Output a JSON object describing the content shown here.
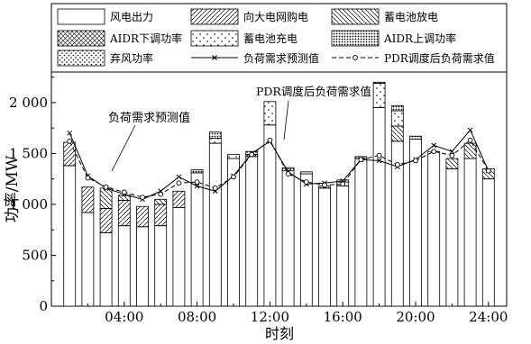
{
  "chart_data": {
    "type": "bar",
    "xlabel": "时刻",
    "ylabel": "功率/MW",
    "ylim": [
      0,
      2300
    ],
    "yticks": [
      0,
      500,
      1000,
      1500,
      2000
    ],
    "ytick_labels": [
      "0",
      "500",
      "1 000",
      "1 500",
      "2 000"
    ],
    "xticks": [
      4,
      8,
      12,
      16,
      20,
      24
    ],
    "xtick_labels": [
      "04:00",
      "08:00",
      "12:00",
      "16:00",
      "20:00",
      "24:00"
    ],
    "hours": [
      1,
      2,
      3,
      4,
      5,
      6,
      7,
      8,
      9,
      10,
      11,
      12,
      13,
      14,
      15,
      16,
      17,
      18,
      19,
      20,
      21,
      22,
      23,
      24
    ],
    "stack_series": [
      {
        "name": "风电出力",
        "pattern": "blank",
        "values": [
          1380,
          920,
          720,
          790,
          780,
          790,
          970,
          1310,
          1600,
          1450,
          1470,
          1780,
          1330,
          1300,
          1160,
          1180,
          1450,
          1950,
          1620,
          1640,
          1520,
          1350,
          1450,
          1250
        ]
      },
      {
        "name": "向大电网购电",
        "pattern": "fwd",
        "values": [
          230,
          250,
          240,
          250,
          200,
          210,
          160,
          0,
          0,
          0,
          0,
          0,
          0,
          0,
          0,
          0,
          0,
          0,
          0,
          0,
          0,
          0,
          0,
          0
        ]
      },
      {
        "name": "蓄电池放电",
        "pattern": "back",
        "values": [
          0,
          0,
          200,
          50,
          0,
          50,
          0,
          0,
          0,
          0,
          0,
          0,
          0,
          0,
          0,
          0,
          0,
          0,
          150,
          0,
          0,
          100,
          150,
          100
        ]
      },
      {
        "name": "AIDR下调功率",
        "pattern": "cross",
        "values": [
          0,
          0,
          0,
          0,
          0,
          0,
          0,
          0,
          0,
          0,
          0,
          0,
          0,
          0,
          0,
          0,
          0,
          0,
          0,
          0,
          0,
          0,
          0,
          0
        ]
      },
      {
        "name": "蓄电池充电",
        "pattern": "sdots",
        "values": [
          0,
          0,
          0,
          0,
          0,
          0,
          0,
          0,
          50,
          40,
          0,
          230,
          0,
          0,
          0,
          40,
          0,
          240,
          150,
          0,
          0,
          0,
          0,
          0
        ]
      },
      {
        "name": "AIDR上调功率",
        "pattern": "ddots",
        "values": [
          0,
          0,
          0,
          0,
          0,
          0,
          0,
          30,
          60,
          0,
          20,
          0,
          30,
          20,
          20,
          20,
          20,
          0,
          50,
          30,
          0,
          0,
          0,
          0
        ]
      },
      {
        "name": "弃风功率",
        "pattern": "fdots",
        "values": [
          0,
          0,
          0,
          0,
          0,
          0,
          0,
          0,
          0,
          0,
          30,
          0,
          0,
          0,
          0,
          0,
          0,
          10,
          0,
          0,
          0,
          0,
          0,
          0
        ]
      }
    ],
    "line_series": [
      {
        "name": "负荷需求预测值",
        "marker": "x",
        "values": [
          1700,
          1280,
          1160,
          1100,
          1050,
          1130,
          1270,
          1180,
          1130,
          1280,
          1500,
          1620,
          1320,
          1200,
          1210,
          1230,
          1440,
          1430,
          1370,
          1440,
          1580,
          1520,
          1730,
          1330
        ]
      },
      {
        "name": "PDR调度后负荷需求值",
        "marker": "o",
        "values": [
          1620,
          1260,
          1170,
          1120,
          1070,
          1100,
          1210,
          1220,
          1160,
          1270,
          1490,
          1630,
          1300,
          1220,
          1190,
          1200,
          1440,
          1480,
          1390,
          1430,
          1520,
          1480,
          1630,
          1330
        ]
      }
    ],
    "legend": {
      "position": "top",
      "columns": 3
    },
    "annotations": [
      {
        "text": "负荷需求预测值",
        "target": "负荷需求预测值"
      },
      {
        "text": "PDR调度后负荷需求值",
        "target": "PDR调度后负荷需求值"
      }
    ]
  }
}
